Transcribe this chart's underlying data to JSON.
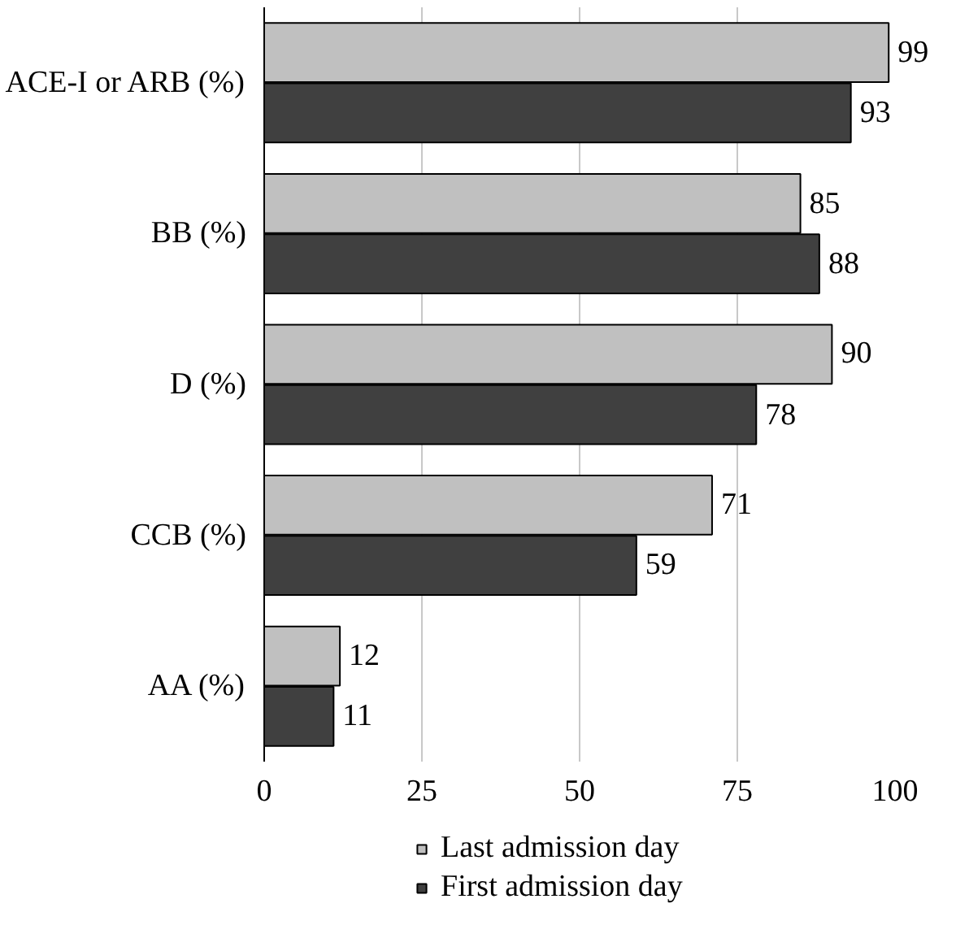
{
  "chart_data": {
    "type": "bar",
    "orientation": "horizontal",
    "categories": [
      "ACE-I or ARB (%)",
      "BB (%)",
      "D (%)",
      "CCB (%)",
      "AA (%)"
    ],
    "series": [
      {
        "name": "Last admission day",
        "color": "#c0c0c0",
        "values": [
          99,
          85,
          90,
          71,
          12
        ]
      },
      {
        "name": "First admission day",
        "color": "#404040",
        "values": [
          93,
          88,
          78,
          59,
          11
        ]
      }
    ],
    "xlim": [
      0,
      100
    ],
    "xticks": [
      0,
      25,
      50,
      75,
      100
    ],
    "grid": "x",
    "legend": "bottom",
    "data_labels": true
  }
}
